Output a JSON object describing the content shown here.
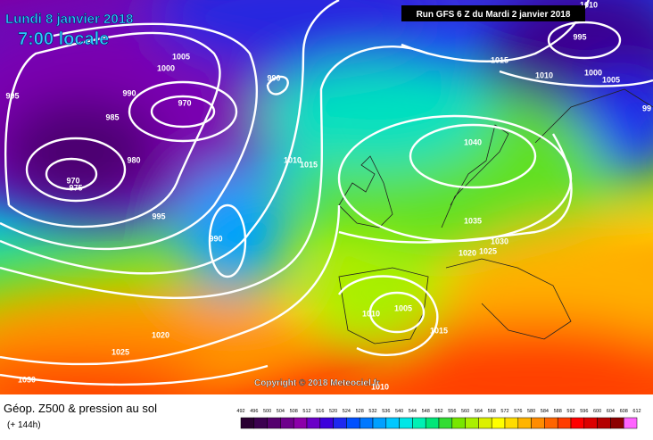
{
  "header": {
    "valid_date": "Lundi 8 janvier 2018",
    "valid_time": "7:00 locale",
    "run": "Run GFS 6 Z du Mardi 2 janvier 2018"
  },
  "isobar_labels": [
    "1005",
    "1000",
    "995",
    "990",
    "970",
    "985",
    "980",
    "970",
    "975",
    "990",
    "1010",
    "1015",
    "995",
    "990",
    "1020",
    "1025",
    "1030",
    "1040",
    "1035",
    "1030",
    "1025",
    "1020",
    "1005",
    "1010",
    "1015",
    "1010",
    "1015",
    "995",
    "1000",
    "1005",
    "1010",
    "1010",
    "99"
  ],
  "copyright": "Copyright © 2018 Meteociel.fr",
  "footer": {
    "title": "Géop. Z500 & pression au sol",
    "lead": "(+ 144h)"
  },
  "legend": {
    "levels": [
      492,
      496,
      500,
      504,
      508,
      512,
      516,
      520,
      524,
      528,
      532,
      536,
      540,
      544,
      548,
      552,
      556,
      560,
      564,
      568,
      572,
      576,
      580,
      584,
      588,
      592,
      596,
      600,
      604,
      608,
      612
    ],
    "colors": [
      "#2a0032",
      "#3c0050",
      "#55006e",
      "#6e008c",
      "#8c00aa",
      "#6a00c8",
      "#3c00dc",
      "#1e28f0",
      "#0050ff",
      "#0078ff",
      "#00a0ff",
      "#00c8ff",
      "#00e6e6",
      "#00f0b4",
      "#00e678",
      "#32dc32",
      "#78e600",
      "#aaf000",
      "#dcf000",
      "#ffff00",
      "#ffdc00",
      "#ffb400",
      "#ff8c00",
      "#ff6400",
      "#ff3c00",
      "#ff0000",
      "#dc0000",
      "#b40000",
      "#8c0000",
      "#ff64ff"
    ]
  }
}
